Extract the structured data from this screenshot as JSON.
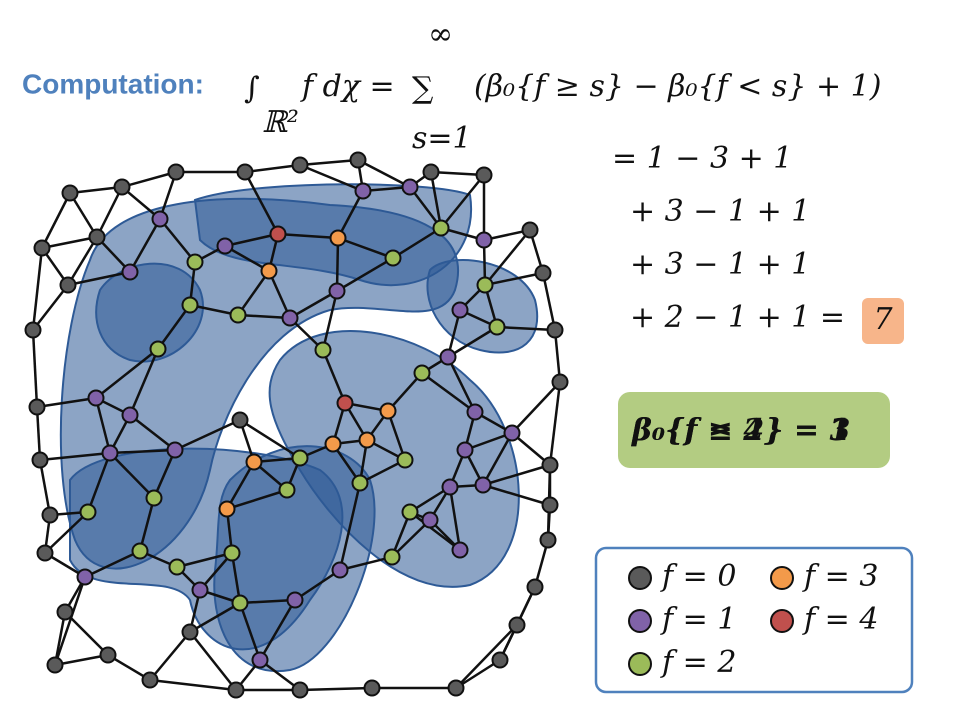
{
  "heading": "Computation:",
  "formula": {
    "integral": "∫",
    "domain": "ℝ²",
    "integrand": "𝑓 𝑑𝜒 =",
    "sum": "∑",
    "upper": "∞",
    "lower": "𝑠=1",
    "body": "(𝛽₀{𝑓 ≥ 𝑠} − 𝛽₀{𝑓 < 𝑠} + 1)"
  },
  "steps": [
    "= 1 − 3 + 1",
    "+ 3 − 1 + 1",
    "+ 3 − 1 + 1",
    "+ 2 − 1 + 1 ="
  ],
  "result": "7",
  "betti_box": [
    "𝜷₀{𝒇 ≥ 2} = 3",
    "𝜷₀{𝒇 ≤ 4} = 1"
  ],
  "legend": [
    {
      "label": "𝑓 = 0",
      "color": "#5a5a5a"
    },
    {
      "label": "𝑓 = 3",
      "color": "#f39a4a"
    },
    {
      "label": "𝑓 = 1",
      "color": "#8062a8"
    },
    {
      "label": "𝑓 = 4",
      "color": "#c0504d"
    },
    {
      "label": "𝑓 = 2",
      "color": "#9bbb59"
    }
  ]
}
